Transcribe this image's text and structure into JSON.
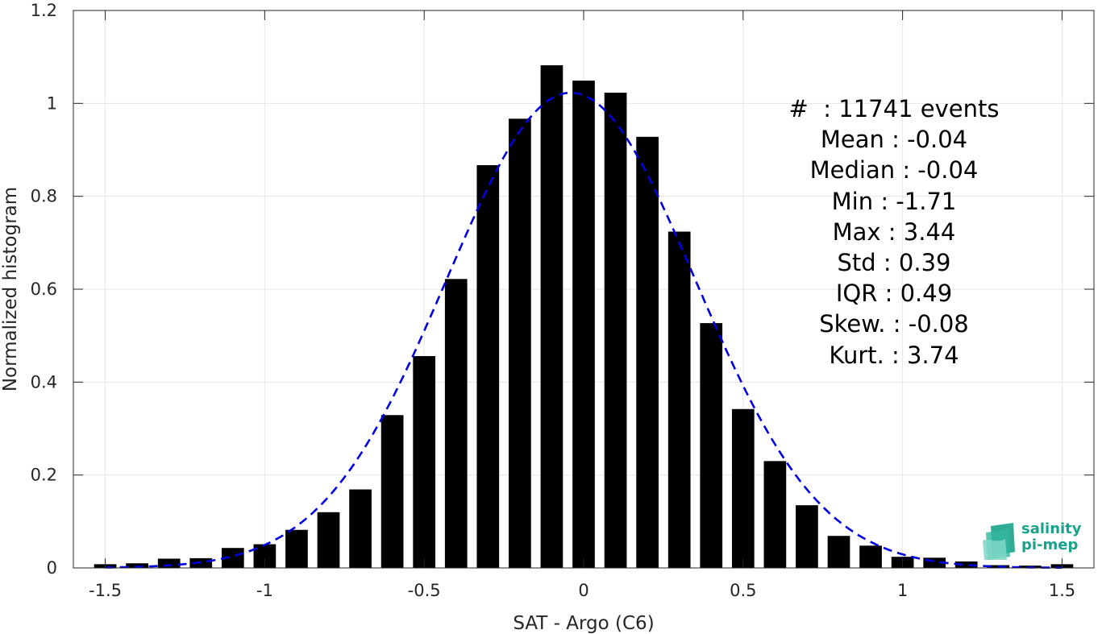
{
  "chart_data": {
    "type": "bar",
    "xlabel": "SAT - Argo (C6)",
    "ylabel": "Normalized histogram",
    "xlim": [
      -1.6,
      1.6
    ],
    "ylim": [
      0,
      1.2
    ],
    "xticks": [
      -1.5,
      -1,
      -0.5,
      0,
      0.5,
      1,
      1.5
    ],
    "xtick_labels": [
      "-1.5",
      "-1",
      "-0.5",
      "0",
      "0.5",
      "1",
      "1.5"
    ],
    "yticks": [
      0,
      0.2,
      0.4,
      0.6,
      0.8,
      1,
      1.2
    ],
    "ytick_labels": [
      "0",
      "0.2",
      "0.4",
      "0.6",
      "0.8",
      "1",
      "1.2"
    ],
    "grid": true,
    "bar_color": "#000000",
    "fit_color": "#0000e0",
    "bin_width": 0.1,
    "bars": {
      "x": [
        -1.5,
        -1.4,
        -1.3,
        -1.2,
        -1.1,
        -1.0,
        -0.9,
        -0.8,
        -0.7,
        -0.6,
        -0.5,
        -0.4,
        -0.3,
        -0.2,
        -0.1,
        0.0,
        0.1,
        0.2,
        0.3,
        0.4,
        0.5,
        0.6,
        0.7,
        0.8,
        0.9,
        1.0,
        1.1,
        1.2,
        1.3,
        1.4,
        1.5
      ],
      "values": [
        0.008,
        0.01,
        0.02,
        0.021,
        0.043,
        0.051,
        0.082,
        0.12,
        0.169,
        0.329,
        0.456,
        0.622,
        0.867,
        0.967,
        1.082,
        1.049,
        1.023,
        0.928,
        0.724,
        0.527,
        0.342,
        0.23,
        0.135,
        0.069,
        0.048,
        0.024,
        0.022,
        0.014,
        0.006,
        0.005,
        0.008
      ]
    },
    "fit_curve": {
      "type": "normal",
      "mean": -0.04,
      "std": 0.39,
      "name": ""
    }
  },
  "stats": {
    "lines": [
      "#  : 11741 events",
      "Mean : -0.04",
      "Median : -0.04",
      "Min : -1.71",
      "Max : 3.44",
      "Std : 0.39",
      "IQR : 0.49",
      "Skew. : -0.08",
      "Kurt. : 3.74"
    ]
  },
  "logo": {
    "line1": "salinity",
    "line2": "pi-mep",
    "color": "#1aa38a"
  }
}
